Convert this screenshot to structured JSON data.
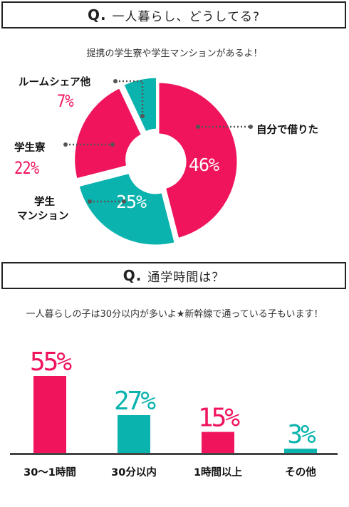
{
  "q1": {
    "marker": "Q.",
    "title": "一人暮らし、どうしてる?"
  },
  "q1_sub": "提携の学生寮や学生マンションがあるよ！",
  "q2": {
    "marker": "Q.",
    "title": "通学時間は？"
  },
  "q2_sub": "一人暮らしの子は30分以内が多いよ★新幹線で通っている子もいます！",
  "colors": {
    "pink": "#f0145c",
    "teal": "#0ab3ad",
    "dark": "#444444"
  },
  "chart_data": [
    {
      "type": "pie",
      "style": "donut",
      "categories": [
        "自分で借りた",
        "マンション",
        "学生寮",
        "ルームシェア他"
      ],
      "labels": [
        "自分で借りた",
        "学生\nマンション",
        "学生寮",
        "ルームシェア他"
      ],
      "values": [
        46,
        25,
        22,
        7
      ],
      "value_labels": [
        "46%",
        "25%",
        "22%",
        "7%"
      ],
      "colors": [
        "#f0145c",
        "#0ab3ad",
        "#f0145c",
        "#0ab3ad"
      ]
    },
    {
      "type": "bar",
      "categories": [
        "30〜1時間",
        "30分以内",
        "1時間以上",
        "その他"
      ],
      "values": [
        55,
        27,
        15,
        3
      ],
      "value_labels": [
        "55%",
        "27%",
        "15%",
        "3%"
      ],
      "colors": [
        "#f0145c",
        "#0ab3ad",
        "#f0145c",
        "#0ab3ad"
      ]
    }
  ]
}
